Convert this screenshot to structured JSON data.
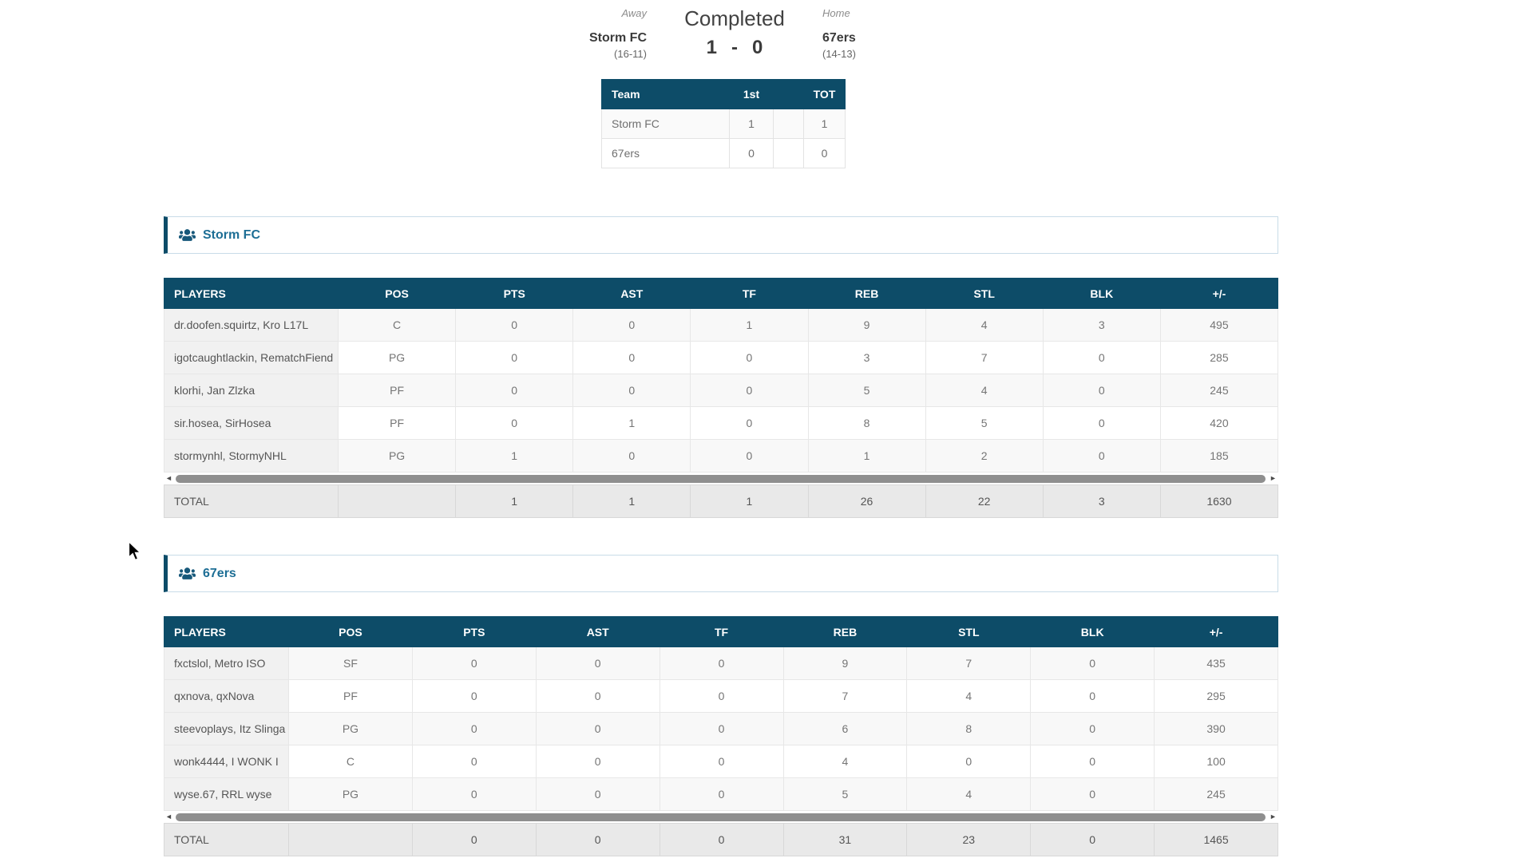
{
  "match_header": {
    "away_label": "Away",
    "home_label": "Home",
    "status": "Completed",
    "away_team": {
      "name": "Storm FC",
      "record": "(16-11)"
    },
    "home_team": {
      "name": "67ers",
      "record": "(14-13)"
    },
    "score": {
      "away": "1",
      "separator": "-",
      "home": "0"
    }
  },
  "score_table": {
    "columns": [
      "Team",
      "1st",
      "",
      "TOT"
    ],
    "rows": [
      [
        "Storm FC",
        "1",
        "",
        "1"
      ],
      [
        "67ers",
        "0",
        "",
        "0"
      ]
    ]
  },
  "box_scores": [
    {
      "team_name": "Storm FC",
      "columns": [
        "PLAYERS",
        "POS",
        "PTS",
        "AST",
        "TF",
        "REB",
        "STL",
        "BLK",
        "+/-"
      ],
      "players": [
        [
          "dr.doofen.squirtz, Kro L17L",
          "C",
          "0",
          "0",
          "1",
          "9",
          "4",
          "3",
          "495"
        ],
        [
          "igotcaughtlackin, RematchFiend",
          "PG",
          "0",
          "0",
          "0",
          "3",
          "7",
          "0",
          "285"
        ],
        [
          "klorhi, Jan Zlzka",
          "PF",
          "0",
          "0",
          "0",
          "5",
          "4",
          "0",
          "245"
        ],
        [
          "sir.hosea, SirHosea",
          "PF",
          "0",
          "1",
          "0",
          "8",
          "5",
          "0",
          "420"
        ],
        [
          "stormynhl, StormyNHL",
          "PG",
          "1",
          "0",
          "0",
          "1",
          "2",
          "0",
          "185"
        ]
      ],
      "total_label": "TOTAL",
      "totals": [
        "",
        "1",
        "1",
        "1",
        "26",
        "22",
        "3",
        "1630"
      ]
    },
    {
      "team_name": "67ers",
      "columns": [
        "PLAYERS",
        "POS",
        "PTS",
        "AST",
        "TF",
        "REB",
        "STL",
        "BLK",
        "+/-"
      ],
      "players": [
        [
          "fxctslol, Metro ISO",
          "SF",
          "0",
          "0",
          "0",
          "9",
          "7",
          "0",
          "435"
        ],
        [
          "qxnova, qxNova",
          "PF",
          "0",
          "0",
          "0",
          "7",
          "4",
          "0",
          "295"
        ],
        [
          "steevoplays, Itz Slinga",
          "PG",
          "0",
          "0",
          "0",
          "6",
          "8",
          "0",
          "390"
        ],
        [
          "wonk4444, I WONK I",
          "C",
          "0",
          "0",
          "0",
          "4",
          "0",
          "0",
          "100"
        ],
        [
          "wyse.67, RRL wyse",
          "PG",
          "0",
          "0",
          "0",
          "5",
          "4",
          "0",
          "245"
        ]
      ],
      "total_label": "TOTAL",
      "totals": [
        "",
        "0",
        "0",
        "0",
        "31",
        "23",
        "0",
        "1465"
      ]
    }
  ],
  "colors": {
    "table_header": "#0d4c68",
    "section_title": "#1d6e95",
    "section_accent_bar": "#0d4c68"
  }
}
